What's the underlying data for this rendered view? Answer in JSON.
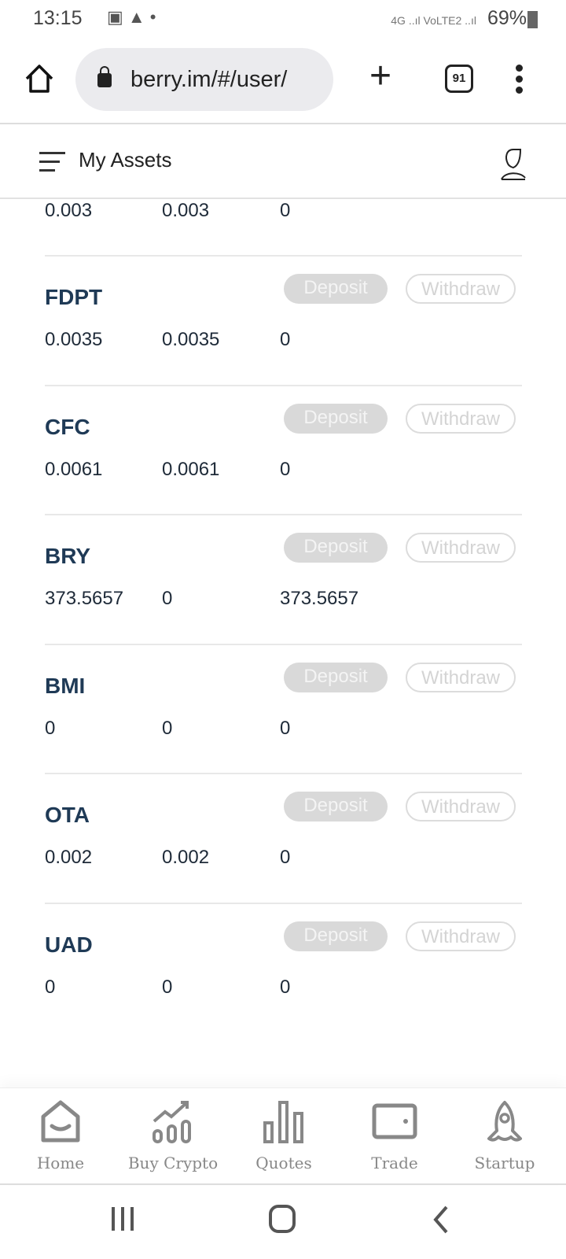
{
  "status_bar": {
    "time": "13:15",
    "network": "4G ..ıl VoLTE2 ..ıl",
    "battery": "69%"
  },
  "browser": {
    "url": "berry.im/#/user/",
    "tab_count": "91"
  },
  "header": {
    "title": "My Assets"
  },
  "partial_row": {
    "values": [
      "0.003",
      "0.003",
      "0"
    ]
  },
  "buttons": {
    "deposit": "Deposit",
    "withdraw": "Withdraw"
  },
  "assets": [
    {
      "name": "FDPT",
      "values": [
        "0.0035",
        "0.0035",
        "0"
      ]
    },
    {
      "name": "CFC",
      "values": [
        "0.0061",
        "0.0061",
        "0"
      ]
    },
    {
      "name": "BRY",
      "values": [
        "373.5657",
        "0",
        "373.5657"
      ]
    },
    {
      "name": "BMI",
      "values": [
        "0",
        "0",
        "0"
      ]
    },
    {
      "name": "OTA",
      "values": [
        "0.002",
        "0.002",
        "0"
      ]
    },
    {
      "name": "UAD",
      "values": [
        "0",
        "0",
        "0"
      ]
    }
  ],
  "bottom_nav": [
    {
      "label": "Home",
      "icon": "home-icon"
    },
    {
      "label": "Buy Crypto",
      "icon": "chart-up-icon"
    },
    {
      "label": "Quotes",
      "icon": "bar-chart-icon"
    },
    {
      "label": "Trade",
      "icon": "wallet-icon"
    },
    {
      "label": "Startup",
      "icon": "rocket-icon"
    }
  ],
  "colors": {
    "asset_name": "#1f3a56",
    "disabled_button": "#d9d9d9",
    "nav_icon": "#888888"
  }
}
